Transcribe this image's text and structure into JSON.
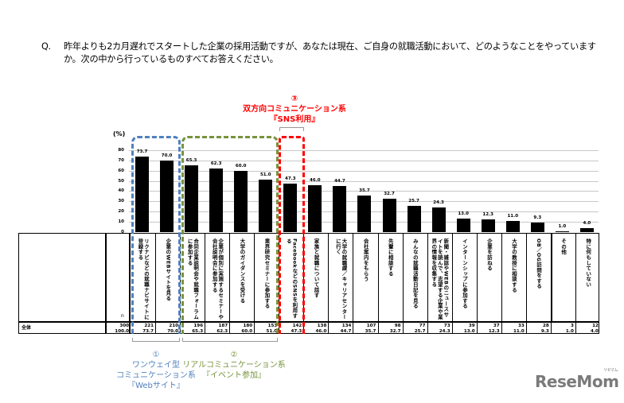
{
  "question": {
    "marker": "Q.",
    "text": "昨年よりも2カ月遅れでスタートした企業の採用活動ですが、あなたは現在、ご自身の就職活動において、どのようなことをやっていますか。次の中から行っているものすべてお答えください。"
  },
  "annotations": {
    "group1": {
      "num": "①",
      "line1": "ワンウェイ型",
      "line2": "コミュニケーション系",
      "line3": "『Webサイト』",
      "color": "#4f81bd"
    },
    "group2": {
      "num": "②",
      "line1": "リアルコミュニケーション系",
      "line2": "『イベント参加』",
      "color": "#77933c"
    },
    "group3": {
      "num": "③",
      "line1": "双方向コミュニケーション系",
      "line2": "『SNS利用』",
      "color": "#ff0000"
    }
  },
  "table": {
    "row_label": "全体",
    "n_label": "n",
    "total_n": "300",
    "total_pct": "100.0"
  },
  "logo": {
    "text": "ReseMom",
    "kana": "リセマム"
  },
  "chart_data": {
    "type": "bar",
    "title": "",
    "ylabel": "(%)",
    "xlabel": "",
    "ylim": [
      0,
      80
    ],
    "yticks": [
      "80",
      "70",
      "60",
      "50",
      "40",
      "30",
      "20",
      "10",
      "0"
    ],
    "grid": true,
    "categories": [
      "リクナビなどの就職ナビサイトに登録する",
      "企業のWEBサイトを見る",
      "合同企業説明会や就職フォーラムに参加する",
      "企業が個別に実施するセミナーや会社説明会に参加する",
      "大学のガイダンスを受ける",
      "業界研究セミナーに参加する",
      "FacebookなどのSNSを利用する",
      "家族と就職について話す",
      "大学の就職課／キャリアセンターに行く",
      "会社案内をもらう",
      "先輩に相談する",
      "みんなの就職活動日記を見る",
      "新聞・雑誌やWEBのニュースサイトを読んで、志望する企業や業界の情報を収集する",
      "インターンシップに参加する",
      "企業を訪ねる",
      "大学の教授に相談する",
      "OB／OG訪問をする",
      "その他",
      "特に何もしていない"
    ],
    "series": [
      {
        "name": "全体 (%)",
        "values": [
          73.7,
          70.0,
          65.3,
          62.3,
          60.0,
          51.0,
          47.3,
          46.0,
          44.7,
          35.7,
          32.7,
          25.7,
          24.3,
          13.0,
          12.3,
          11.0,
          9.3,
          1.0,
          4.0
        ]
      },
      {
        "name": "全体 (n)",
        "values": [
          221,
          210,
          196,
          187,
          180,
          153,
          142,
          138,
          134,
          107,
          98,
          77,
          73,
          39,
          37,
          33,
          28,
          3,
          12
        ]
      }
    ],
    "value_labels": [
      "73.7",
      "70.0",
      "65.3",
      "62.3",
      "60.0",
      "51.0",
      "47.3",
      "46.0",
      "44.7",
      "35.7",
      "32.7",
      "25.7",
      "24.3",
      "13.0",
      "12.3",
      "11.0",
      "9.3",
      "1.0",
      "4.0"
    ],
    "n_labels": [
      "221",
      "210",
      "196",
      "187",
      "180",
      "153",
      "142",
      "138",
      "134",
      "107",
      "98",
      "77",
      "73",
      "39",
      "37",
      "33",
      "28",
      "3",
      "12"
    ],
    "total_n": 300
  }
}
